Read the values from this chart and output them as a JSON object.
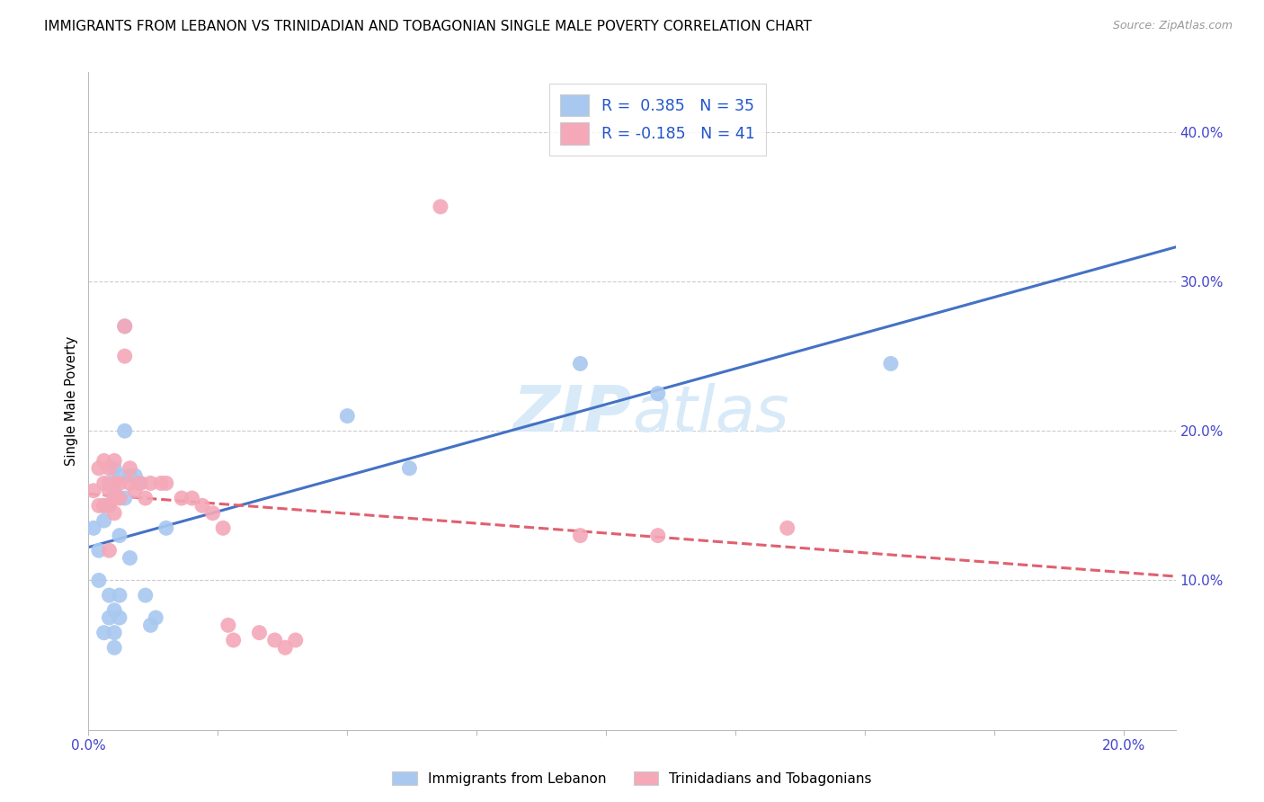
{
  "title": "IMMIGRANTS FROM LEBANON VS TRINIDADIAN AND TOBAGONIAN SINGLE MALE POVERTY CORRELATION CHART",
  "source": "Source: ZipAtlas.com",
  "legend_label1": "Immigrants from Lebanon",
  "legend_label2": "Trinidadians and Tobagonians",
  "R1": 0.385,
  "N1": 35,
  "R2": -0.185,
  "N2": 41,
  "color_blue": "#a8c8f0",
  "color_pink": "#f4a8b8",
  "color_blue_line": "#4472c4",
  "color_pink_line": "#e06070",
  "watermark_color": "#d8eaf8",
  "xlim": [
    0.0,
    0.21
  ],
  "ylim": [
    0.0,
    0.44
  ],
  "figsize": [
    14.06,
    8.92
  ],
  "dpi": 100,
  "blue_points": [
    [
      0.001,
      0.135
    ],
    [
      0.002,
      0.12
    ],
    [
      0.002,
      0.1
    ],
    [
      0.003,
      0.15
    ],
    [
      0.003,
      0.14
    ],
    [
      0.003,
      0.065
    ],
    [
      0.004,
      0.165
    ],
    [
      0.004,
      0.15
    ],
    [
      0.004,
      0.09
    ],
    [
      0.004,
      0.075
    ],
    [
      0.005,
      0.175
    ],
    [
      0.005,
      0.16
    ],
    [
      0.005,
      0.08
    ],
    [
      0.005,
      0.065
    ],
    [
      0.005,
      0.055
    ],
    [
      0.006,
      0.17
    ],
    [
      0.006,
      0.13
    ],
    [
      0.006,
      0.09
    ],
    [
      0.006,
      0.075
    ],
    [
      0.007,
      0.27
    ],
    [
      0.007,
      0.2
    ],
    [
      0.007,
      0.155
    ],
    [
      0.008,
      0.17
    ],
    [
      0.008,
      0.115
    ],
    [
      0.009,
      0.17
    ],
    [
      0.01,
      0.165
    ],
    [
      0.011,
      0.09
    ],
    [
      0.012,
      0.07
    ],
    [
      0.013,
      0.075
    ],
    [
      0.015,
      0.135
    ],
    [
      0.05,
      0.21
    ],
    [
      0.062,
      0.175
    ],
    [
      0.095,
      0.245
    ],
    [
      0.11,
      0.225
    ],
    [
      0.155,
      0.245
    ]
  ],
  "pink_points": [
    [
      0.001,
      0.16
    ],
    [
      0.002,
      0.175
    ],
    [
      0.002,
      0.15
    ],
    [
      0.003,
      0.18
    ],
    [
      0.003,
      0.165
    ],
    [
      0.003,
      0.15
    ],
    [
      0.004,
      0.175
    ],
    [
      0.004,
      0.16
    ],
    [
      0.004,
      0.15
    ],
    [
      0.004,
      0.12
    ],
    [
      0.005,
      0.18
    ],
    [
      0.005,
      0.165
    ],
    [
      0.005,
      0.155
    ],
    [
      0.005,
      0.145
    ],
    [
      0.006,
      0.165
    ],
    [
      0.006,
      0.155
    ],
    [
      0.007,
      0.27
    ],
    [
      0.007,
      0.25
    ],
    [
      0.008,
      0.175
    ],
    [
      0.008,
      0.165
    ],
    [
      0.009,
      0.16
    ],
    [
      0.01,
      0.165
    ],
    [
      0.011,
      0.155
    ],
    [
      0.012,
      0.165
    ],
    [
      0.014,
      0.165
    ],
    [
      0.015,
      0.165
    ],
    [
      0.018,
      0.155
    ],
    [
      0.02,
      0.155
    ],
    [
      0.022,
      0.15
    ],
    [
      0.024,
      0.145
    ],
    [
      0.026,
      0.135
    ],
    [
      0.027,
      0.07
    ],
    [
      0.028,
      0.06
    ],
    [
      0.033,
      0.065
    ],
    [
      0.036,
      0.06
    ],
    [
      0.038,
      0.055
    ],
    [
      0.04,
      0.06
    ],
    [
      0.068,
      0.35
    ],
    [
      0.095,
      0.13
    ],
    [
      0.11,
      0.13
    ],
    [
      0.135,
      0.135
    ]
  ]
}
